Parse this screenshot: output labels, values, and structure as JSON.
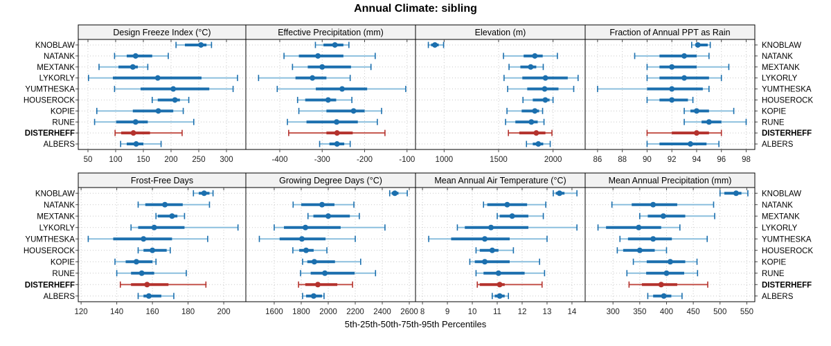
{
  "title": "Annual Climate: sibling",
  "caption": "5th-25th-50th-75th-95th Percentiles",
  "colors": {
    "main_blue": "#1B6FAE",
    "light_blue": "#8BBFDE",
    "highlight_red": "#B4322D",
    "light_red": "#C4544C",
    "grid": "#C8C8C8",
    "header_bg": "#F2F2F2",
    "border": "#000000",
    "tick": "#444444",
    "tick_label": "#222222"
  },
  "chart_data": {
    "type": "scatter",
    "style": "trellis of horizontal five-number percentile intervals (5th-25th-50th-75th-95th); dot = median, thick bar = 25th-75th, thin capped line = 5th-95th",
    "legend_position": "none",
    "grid": "dotted",
    "sites": [
      "KNOBLAW",
      "NATANK",
      "MEXTANK",
      "LYKORLY",
      "YUMTHESKA",
      "HOUSEROCK",
      "KOPIE",
      "RUNE",
      "DISTERHEFF",
      "ALBERS"
    ],
    "highlight_site": "DISTERHEFF",
    "panels": [
      {
        "title": "Design Freeze Index (°C)",
        "grid_row": 0,
        "grid_col": 0,
        "xlim": [
          32.5,
          335
        ],
        "xticks": [
          50,
          100,
          150,
          200,
          250,
          300
        ],
        "percentiles": {
          "KNOBLAW": [
            209,
            225,
            254,
            264,
            273
          ],
          "NATANK": [
            98,
            120,
            136,
            166,
            195
          ],
          "MEXTANK": [
            70,
            105,
            131,
            140,
            158
          ],
          "LYKORLY": [
            51,
            95,
            176,
            255,
            320
          ],
          "YUMTHESKA": [
            98,
            145,
            204,
            269,
            312
          ],
          "HOUSEROCK": [
            166,
            176,
            207,
            216,
            232
          ],
          "KOPIE": [
            66,
            131,
            177,
            204,
            222
          ],
          "RUNE": [
            62,
            101,
            136,
            158,
            241
          ],
          "DISTERHEFF": [
            99,
            110,
            132,
            162,
            220
          ],
          "ALBERS": [
            109,
            120,
            137,
            150,
            182
          ]
        }
      },
      {
        "title": "Effective Precipitation (mm)",
        "grid_row": 0,
        "grid_col": 1,
        "xlim": [
          -480,
          -80
        ],
        "xticks": [
          -400,
          -300,
          -200,
          -100
        ],
        "percentiles": {
          "KNOBLAW": [
            -316,
            -297,
            -270,
            -250,
            -237
          ],
          "NATANK": [
            -390,
            -355,
            -310,
            -250,
            -175
          ],
          "MEXTANK": [
            -370,
            -334,
            -300,
            -232,
            -185
          ],
          "LYKORLY": [
            -450,
            -363,
            -323,
            -290,
            -234
          ],
          "YUMTHESKA": [
            -406,
            -315,
            -253,
            -194,
            -103
          ],
          "HOUSEROCK": [
            -358,
            -340,
            -286,
            -267,
            -230
          ],
          "KOPIE": [
            -355,
            -290,
            -226,
            -200,
            -160
          ],
          "RUNE": [
            -382,
            -337,
            -266,
            -216,
            -170
          ],
          "DISTERHEFF": [
            -379,
            -290,
            -265,
            -228,
            -152
          ],
          "ALBERS": [
            -306,
            -283,
            -265,
            -248,
            -234
          ]
        }
      },
      {
        "title": "Elevation (m)",
        "grid_row": 0,
        "grid_col": 2,
        "xlim": [
          737,
          2295
        ],
        "xticks": [
          1000,
          1500,
          2000
        ],
        "percentiles": {
          "KNOBLAW": [
            855,
            880,
            915,
            950,
            995
          ],
          "NATANK": [
            1545,
            1730,
            1833,
            1905,
            2040
          ],
          "MEXTANK": [
            1596,
            1700,
            1795,
            1846,
            1910
          ],
          "LYKORLY": [
            1550,
            1718,
            1930,
            2135,
            2230
          ],
          "YUMTHESKA": [
            1583,
            1763,
            1923,
            2050,
            2190
          ],
          "HOUSEROCK": [
            1724,
            1814,
            1929,
            1968,
            2000
          ],
          "KOPIE": [
            1577,
            1712,
            1833,
            1872,
            1904
          ],
          "RUNE": [
            1564,
            1654,
            1801,
            1859,
            1917
          ],
          "DISTERHEFF": [
            1590,
            1690,
            1846,
            1930,
            1990
          ],
          "ALBERS": [
            1756,
            1814,
            1865,
            1910,
            1974
          ]
        }
      },
      {
        "title": "Fraction of Annual PPT as Rain",
        "grid_row": 0,
        "grid_col": 3,
        "xlim": [
          85,
          98.7
        ],
        "xticks": [
          86,
          88,
          90,
          92,
          94,
          96,
          98
        ],
        "percentiles": {
          "KNOBLAW": [
            93.6,
            93.9,
            94.1,
            94.9,
            95.1
          ],
          "NATANK": [
            89,
            91,
            93,
            94,
            95
          ],
          "MEXTANK": [
            90,
            91,
            92,
            94,
            96.6
          ],
          "LYKORLY": [
            90,
            91,
            93,
            95,
            96
          ],
          "YUMTHESKA": [
            86,
            90,
            92,
            94.5,
            95
          ],
          "HOUSEROCK": [
            90,
            91,
            92,
            93.3,
            93.7
          ],
          "KOPIE": [
            93,
            93.5,
            94,
            95,
            97
          ],
          "RUNE": [
            93,
            94.4,
            95,
            96,
            98
          ],
          "DISTERHEFF": [
            90,
            92,
            94,
            95,
            96
          ],
          "ALBERS": [
            90,
            91,
            93.5,
            94.8,
            95.8
          ]
        }
      },
      {
        "title": "Frost-Free Days",
        "grid_row": 1,
        "grid_col": 0,
        "xlim": [
          118.4,
          212.4
        ],
        "xticks": [
          120,
          140,
          160,
          180,
          200
        ],
        "percentiles": {
          "KNOBLAW": [
            183,
            186,
            189,
            192,
            194
          ],
          "NATANK": [
            152,
            156,
            167,
            177,
            192
          ],
          "MEXTANK": [
            162,
            163,
            171,
            174,
            178
          ],
          "LYKORLY": [
            148,
            152,
            161,
            178,
            208
          ],
          "YUMTHESKA": [
            124,
            138,
            155,
            171,
            191
          ],
          "HOUSEROCK": [
            152,
            155,
            160,
            168,
            170
          ],
          "KOPIE": [
            139,
            145,
            151,
            160,
            162
          ],
          "RUNE": [
            140,
            148,
            154,
            161,
            179
          ],
          "DISTERHEFF": [
            142,
            148,
            157,
            169,
            190
          ],
          "ALBERS": [
            152,
            155,
            158,
            165,
            172
          ]
        }
      },
      {
        "title": "Growing Degree Days (°C)",
        "grid_row": 1,
        "grid_col": 1,
        "xlim": [
          1390,
          2646
        ],
        "xticks": [
          1600,
          1800,
          2000,
          2200,
          2400,
          2600
        ],
        "percentiles": {
          "KNOBLAW": [
            2455,
            2470,
            2493,
            2520,
            2585
          ],
          "NATANK": [
            1740,
            1800,
            1954,
            2046,
            2190
          ],
          "MEXTANK": [
            1850,
            1890,
            2000,
            2160,
            2230
          ],
          "LYKORLY": [
            1600,
            1672,
            1831,
            2092,
            2420
          ],
          "YUMTHESKA": [
            1490,
            1640,
            1805,
            1980,
            2200
          ],
          "HOUSEROCK": [
            1738,
            1785,
            1836,
            1892,
            1990
          ],
          "KOPIE": [
            1810,
            1845,
            1897,
            2050,
            2240
          ],
          "RUNE": [
            1795,
            1870,
            1975,
            2195,
            2350
          ],
          "DISTERHEFF": [
            1780,
            1830,
            1923,
            2067,
            2180
          ],
          "ALBERS": [
            1810,
            1836,
            1892,
            1954,
            1969
          ]
        }
      },
      {
        "title": "Mean Annual Air Temperature (°C)",
        "grid_row": 1,
        "grid_col": 2,
        "xlim": [
          7.72,
          14.53
        ],
        "xticks": [
          8,
          9,
          10,
          11,
          12,
          13,
          14
        ],
        "percentiles": {
          "KNOBLAW": [
            13.25,
            13.35,
            13.5,
            13.7,
            14.2
          ],
          "NATANK": [
            10.45,
            10.6,
            11.4,
            12.2,
            12.95
          ],
          "MEXTANK": [
            11.0,
            11.1,
            11.6,
            12.25,
            12.85
          ],
          "LYKORLY": [
            9.4,
            9.7,
            10.75,
            12.25,
            14.2
          ],
          "YUMTHESKA": [
            8.25,
            9.15,
            10.5,
            11.5,
            13.0
          ],
          "HOUSEROCK": [
            10.15,
            10.3,
            10.8,
            11.05,
            11.65
          ],
          "KOPIE": [
            9.9,
            10.1,
            10.5,
            11.5,
            12.7
          ],
          "RUNE": [
            10.15,
            10.45,
            11.05,
            12.1,
            12.9
          ],
          "DISTERHEFF": [
            10.2,
            10.3,
            11.1,
            11.3,
            12.8
          ],
          "ALBERS": [
            10.8,
            10.9,
            11.1,
            11.3,
            11.45
          ]
        }
      },
      {
        "title": "Mean Annual Precipitation (mm)",
        "grid_row": 1,
        "grid_col": 3,
        "xlim": [
          248,
          565
        ],
        "xticks": [
          300,
          350,
          400,
          450,
          500,
          550
        ],
        "percentiles": {
          "KNOBLAW": [
            500,
            508,
            530,
            540,
            552
          ],
          "NATANK": [
            298,
            335,
            375,
            420,
            488
          ],
          "MEXTANK": [
            350,
            365,
            394,
            435,
            490
          ],
          "LYKORLY": [
            272,
            287,
            348,
            390,
            425
          ],
          "YUMTHESKA": [
            313,
            328,
            375,
            410,
            476
          ],
          "HOUSEROCK": [
            308,
            319,
            350,
            378,
            400
          ],
          "KOPIE": [
            338,
            363,
            407,
            435,
            457
          ],
          "RUNE": [
            326,
            362,
            400,
            433,
            458
          ],
          "DISTERHEFF": [
            330,
            354,
            390,
            420,
            477
          ],
          "ALBERS": [
            365,
            375,
            395,
            409,
            429
          ]
        }
      }
    ]
  }
}
